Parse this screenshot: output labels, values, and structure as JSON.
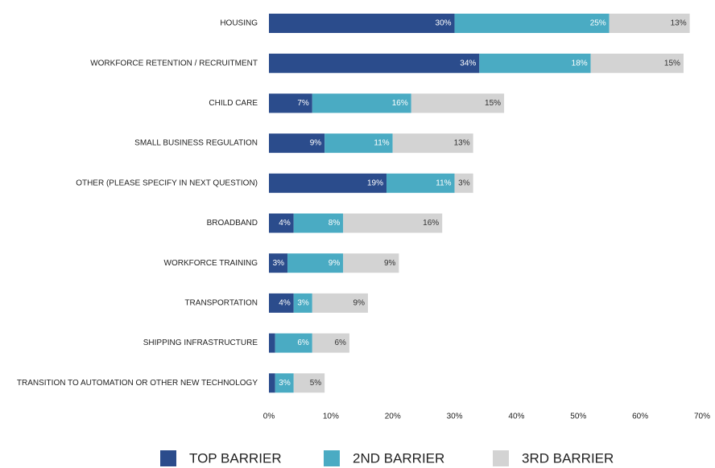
{
  "chart_data": {
    "type": "stacked_barh",
    "categories": [
      "HOUSING",
      "WORKFORCE RETENTION / RECRUITMENT",
      "CHILD CARE",
      "SMALL BUSINESS REGULATION",
      "OTHER (PLEASE SPECIFY IN NEXT QUESTION)",
      "BROADBAND",
      "WORKFORCE TRAINING",
      "TRANSPORTATION",
      "SHIPPING INFRASTRUCTURE",
      "TRANSITION TO AUTOMATION OR OTHER NEW TECHNOLOGY"
    ],
    "series": [
      {
        "name": "TOP BARRIER",
        "color": "#2b4c8c",
        "label_color": "#ffffff",
        "values": [
          30,
          34,
          7,
          9,
          19,
          4,
          3,
          4,
          1,
          1
        ],
        "value_labels": [
          "30%",
          "34%",
          "7%",
          "9%",
          "19%",
          "4%",
          "3%",
          "4%",
          null,
          null
        ]
      },
      {
        "name": "2ND BARRIER",
        "color": "#4aabc3",
        "label_color": "#ffffff",
        "values": [
          25,
          18,
          16,
          11,
          11,
          8,
          9,
          3,
          6,
          3
        ],
        "value_labels": [
          "25%",
          "18%",
          "16%",
          "11%",
          "11%",
          "8%",
          "9%",
          "3%",
          "6%",
          "3%"
        ]
      },
      {
        "name": "3RD BARRIER",
        "color": "#d3d3d3",
        "label_color": "#333333",
        "values": [
          13,
          15,
          15,
          13,
          3,
          16,
          9,
          9,
          6,
          5
        ],
        "value_labels": [
          "13%",
          "15%",
          "15%",
          "13%",
          "3%",
          "16%",
          "9%",
          "9%",
          "6%",
          "5%"
        ]
      }
    ],
    "xlim": [
      0,
      70
    ],
    "xticks": [
      {
        "value": 0,
        "label": "0%"
      },
      {
        "value": 10,
        "label": "10%"
      },
      {
        "value": 20,
        "label": "20%"
      },
      {
        "value": 30,
        "label": "30%"
      },
      {
        "value": 40,
        "label": "40%"
      },
      {
        "value": 50,
        "label": "50%"
      },
      {
        "value": 60,
        "label": "60%"
      },
      {
        "value": 70,
        "label": "70%"
      }
    ],
    "grid": false,
    "legend": "bottom"
  }
}
